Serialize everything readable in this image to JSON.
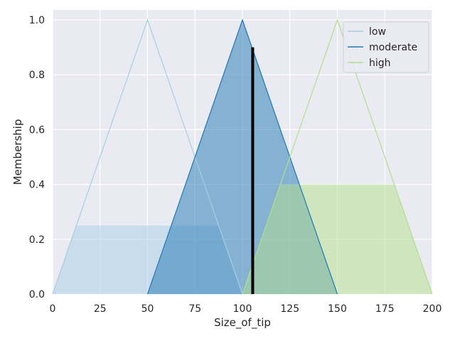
{
  "chart_data": {
    "type": "area",
    "title": "",
    "xlabel": "Size_of_tip",
    "ylabel": "Membership",
    "xlim": [
      0,
      200
    ],
    "ylim": [
      0,
      1.0
    ],
    "xticks": [
      0,
      25,
      50,
      75,
      100,
      125,
      150,
      175,
      200
    ],
    "yticks": [
      0.0,
      0.2,
      0.4,
      0.6,
      0.8,
      1.0
    ],
    "xtick_labels": [
      "0",
      "25",
      "50",
      "75",
      "100",
      "125",
      "150",
      "175",
      "200"
    ],
    "ytick_labels": [
      "0.0",
      "0.2",
      "0.4",
      "0.6",
      "0.8",
      "1.0"
    ],
    "grid": true,
    "legend_position": "top-right",
    "series": [
      {
        "name": "low",
        "color": "#a6cee3",
        "membership": [
          [
            0,
            0
          ],
          [
            50,
            1
          ],
          [
            100,
            0
          ]
        ],
        "activation": 0.25,
        "clipped_area": [
          [
            0,
            0
          ],
          [
            12.5,
            0.25
          ],
          [
            87.5,
            0.25
          ],
          [
            100,
            0
          ]
        ]
      },
      {
        "name": "moderate",
        "color": "#1f78b4",
        "membership": [
          [
            50,
            0
          ],
          [
            100,
            1
          ],
          [
            150,
            0
          ]
        ],
        "activation": 1.0,
        "clipped_area": [
          [
            50,
            0
          ],
          [
            100,
            1
          ],
          [
            150,
            0
          ]
        ]
      },
      {
        "name": "high",
        "color": "#b2df8a",
        "membership": [
          [
            100,
            0
          ],
          [
            150,
            1
          ],
          [
            200,
            0
          ]
        ],
        "activation": 0.4,
        "clipped_area": [
          [
            100,
            0
          ],
          [
            120,
            0.4
          ],
          [
            180,
            0.4
          ],
          [
            200,
            0
          ]
        ]
      }
    ],
    "output_line": {
      "x": 105.4,
      "y": 0.9,
      "color": "#000000"
    }
  }
}
